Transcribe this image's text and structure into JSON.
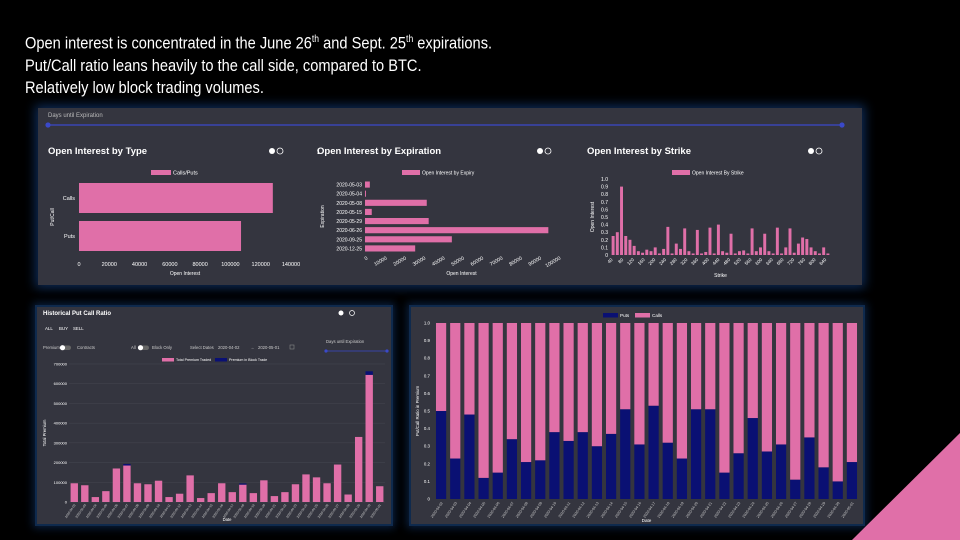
{
  "headline": {
    "line1_a": "Open interest is concentrated in the June 26",
    "line1_sup1": "th",
    "line1_b": " and Sept. 25",
    "line1_sup2": "th",
    "line1_c": " expirations.",
    "line2": "Put/Call ratio leans heavily to the call side, compared to BTC.",
    "line3": "Relatively low block trading volumes."
  },
  "top_panel": {
    "slider_label": "Days until Expiration",
    "colors": {
      "pink": "#e06fa8",
      "navy": "#0a1073",
      "slider": "#3a49c9",
      "panel": "#34353f"
    }
  },
  "oi_type": {
    "title": "Open Interest by Type",
    "chart_data": {
      "type": "bar",
      "orientation": "horizontal",
      "title": "Open Interest by Type",
      "categories": [
        "Calls",
        "Puts"
      ],
      "series": [
        {
          "name": "Calls/Puts",
          "values": [
            128000,
            107000
          ]
        }
      ],
      "xlabel": "Open Interest",
      "ylabel": "Put/Call",
      "xlim": [
        0,
        140000
      ],
      "xticks": [
        "0",
        "20000",
        "40000",
        "60000",
        "80000",
        "100000",
        "120000",
        "140000"
      ]
    }
  },
  "oi_exp": {
    "title": "Open Interest by Expiration",
    "chart_data": {
      "type": "bar",
      "orientation": "horizontal",
      "title": "Open Interest by Expiration",
      "categories": [
        "2020-05-03",
        "2020-05-04",
        "2020-05-08",
        "2020-05-15",
        "2020-05-29",
        "2020-06-26",
        "2020-09-25",
        "2020-12-25"
      ],
      "series": [
        {
          "name": "Open Interest by Expiry",
          "values": [
            2500,
            500,
            32000,
            3500,
            33000,
            95000,
            45000,
            26000
          ]
        }
      ],
      "xlabel": "Open Interest",
      "ylabel": "Expiration",
      "xlim": [
        0,
        100000
      ],
      "xticks": [
        "0",
        "10000",
        "20000",
        "30000",
        "40000",
        "50000",
        "60000",
        "70000",
        "80000",
        "90000",
        "100000"
      ]
    }
  },
  "oi_strike": {
    "title": "Open Interest by Strike",
    "chart_data": {
      "type": "bar",
      "title": "Open Interest by Strike",
      "series": [
        {
          "name": "Open Interest By Strike",
          "values": [
            0.25,
            0.3,
            0.9,
            0.25,
            0.2,
            0.12,
            0.05,
            0.03,
            0.07,
            0.05,
            0.1,
            0.02,
            0.08,
            0.37,
            0.02,
            0.15,
            0.08,
            0.35,
            0.05,
            0.02,
            0.33,
            0.02,
            0.04,
            0.36,
            0.02,
            0.4,
            0.05,
            0.03,
            0.28,
            0.02,
            0.05,
            0.06,
            0.02,
            0.35,
            0.05,
            0.1,
            0.28,
            0.05,
            0.02,
            0.36,
            0.02,
            0.1,
            0.35,
            0.03,
            0.15,
            0.23,
            0.21,
            0.1,
            0.05,
            0.02,
            0.1,
            0.02
          ]
        }
      ],
      "xticks": [
        "40",
        "60",
        "80",
        "100",
        "120",
        "140",
        "160",
        "180",
        "200",
        "220",
        "240",
        "260",
        "280",
        "300",
        "320",
        "340",
        "360",
        "380",
        "400",
        "420",
        "440",
        "460",
        "480",
        "500",
        "520",
        "540",
        "560",
        "580",
        "600",
        "620",
        "640",
        "660",
        "680",
        "700",
        "720",
        "740",
        "760",
        "780",
        "800",
        "820",
        "840",
        "860"
      ],
      "xlabel": "Strike",
      "ylabel": "Open Interest",
      "ylim": [
        0,
        1.0
      ],
      "yticks": [
        "0",
        "0.1",
        "0.2",
        "0.3",
        "0.4",
        "0.5",
        "0.6",
        "0.7",
        "0.8",
        "0.9",
        "1.0"
      ]
    }
  },
  "hist": {
    "title": "Historical Put Call Ratio",
    "filters": [
      "ALL",
      "BUY",
      "SELL"
    ],
    "toggle1_left": "Premium",
    "toggle1_right": "Contracts",
    "toggle2_left": "All",
    "toggle2_right": "Block Only",
    "dates_label": "Select Dates",
    "date_from": "2020-04-02",
    "date_sep": "→",
    "date_to": "2020-05-01",
    "slider_label": "Days until Expiration",
    "chart_data": {
      "type": "bar",
      "stacked": true,
      "categories": [
        "2020-04-02",
        "2020-04-03",
        "2020-04-04",
        "2020-04-05",
        "2020-04-06",
        "2020-04-07",
        "2020-04-08",
        "2020-04-09",
        "2020-04-10",
        "2020-04-11",
        "2020-04-12",
        "2020-04-13",
        "2020-04-14",
        "2020-04-15",
        "2020-04-16",
        "2020-04-17",
        "2020-04-18",
        "2020-04-19",
        "2020-04-20",
        "2020-04-21",
        "2020-04-22",
        "2020-04-23",
        "2020-04-24",
        "2020-04-25",
        "2020-04-26",
        "2020-04-27",
        "2020-04-28",
        "2020-04-29",
        "2020-04-30",
        "2020-05-01"
      ],
      "series": [
        {
          "name": "Total Premium Traded",
          "values": [
            95000,
            85000,
            25000,
            55000,
            170000,
            185000,
            95000,
            90000,
            108000,
            25000,
            42000,
            135000,
            20000,
            45000,
            95000,
            50000,
            88000,
            45000,
            110000,
            30000,
            50000,
            90000,
            140000,
            125000,
            95000,
            190000,
            38000,
            330000,
            645000,
            80000
          ]
        },
        {
          "name": "Premium in Block Trade",
          "values": [
            0,
            0,
            0,
            0,
            0,
            8000,
            0,
            0,
            0,
            0,
            0,
            0,
            0,
            0,
            0,
            0,
            6000,
            0,
            0,
            0,
            0,
            0,
            0,
            0,
            0,
            0,
            0,
            0,
            18000,
            0
          ]
        }
      ],
      "xlabel": "Date",
      "ylabel": "Total Premium",
      "ylim": [
        0,
        700000
      ],
      "yticks": [
        "0",
        "100000",
        "200000",
        "300000",
        "400000",
        "500000",
        "600000",
        "700000"
      ]
    }
  },
  "pc_ratio": {
    "chart_data": {
      "type": "bar",
      "stacked": true,
      "categories": [
        "2020-04-02",
        "2020-04-03",
        "2020-04-04",
        "2020-04-05",
        "2020-04-06",
        "2020-04-07",
        "2020-04-08",
        "2020-04-09",
        "2020-04-10",
        "2020-04-11",
        "2020-04-12",
        "2020-04-13",
        "2020-04-14",
        "2020-04-15",
        "2020-04-16",
        "2020-04-17",
        "2020-04-18",
        "2020-04-19",
        "2020-04-20",
        "2020-04-21",
        "2020-04-22",
        "2020-04-23",
        "2020-04-24",
        "2020-04-25",
        "2020-04-26",
        "2020-04-27",
        "2020-04-28",
        "2020-04-29",
        "2020-04-30",
        "2020-05-01"
      ],
      "series": [
        {
          "name": "Puts",
          "values": [
            0.5,
            0.23,
            0.48,
            0.12,
            0.15,
            0.34,
            0.21,
            0.22,
            0.38,
            0.33,
            0.38,
            0.3,
            0.37,
            0.51,
            0.31,
            0.53,
            0.32,
            0.23,
            0.51,
            0.51,
            0.15,
            0.26,
            0.46,
            0.27,
            0.31,
            0.11,
            0.35,
            0.18,
            0.1,
            0.21
          ]
        },
        {
          "name": "Calls",
          "values": [
            0.5,
            0.77,
            0.52,
            0.88,
            0.85,
            0.66,
            0.79,
            0.78,
            0.62,
            0.67,
            0.62,
            0.7,
            0.63,
            0.49,
            0.69,
            0.47,
            0.68,
            0.77,
            0.49,
            0.49,
            0.85,
            0.74,
            0.54,
            0.73,
            0.69,
            0.89,
            0.65,
            0.82,
            0.9,
            0.79
          ]
        }
      ],
      "xlabel": "Date",
      "ylabel": "Put/Call Ratio in Premium",
      "ylim": [
        0,
        1.0
      ],
      "yticks": [
        "0",
        "0.1",
        "0.2",
        "0.3",
        "0.4",
        "0.5",
        "0.6",
        "0.7",
        "0.8",
        "0.9",
        "1.0"
      ]
    }
  }
}
